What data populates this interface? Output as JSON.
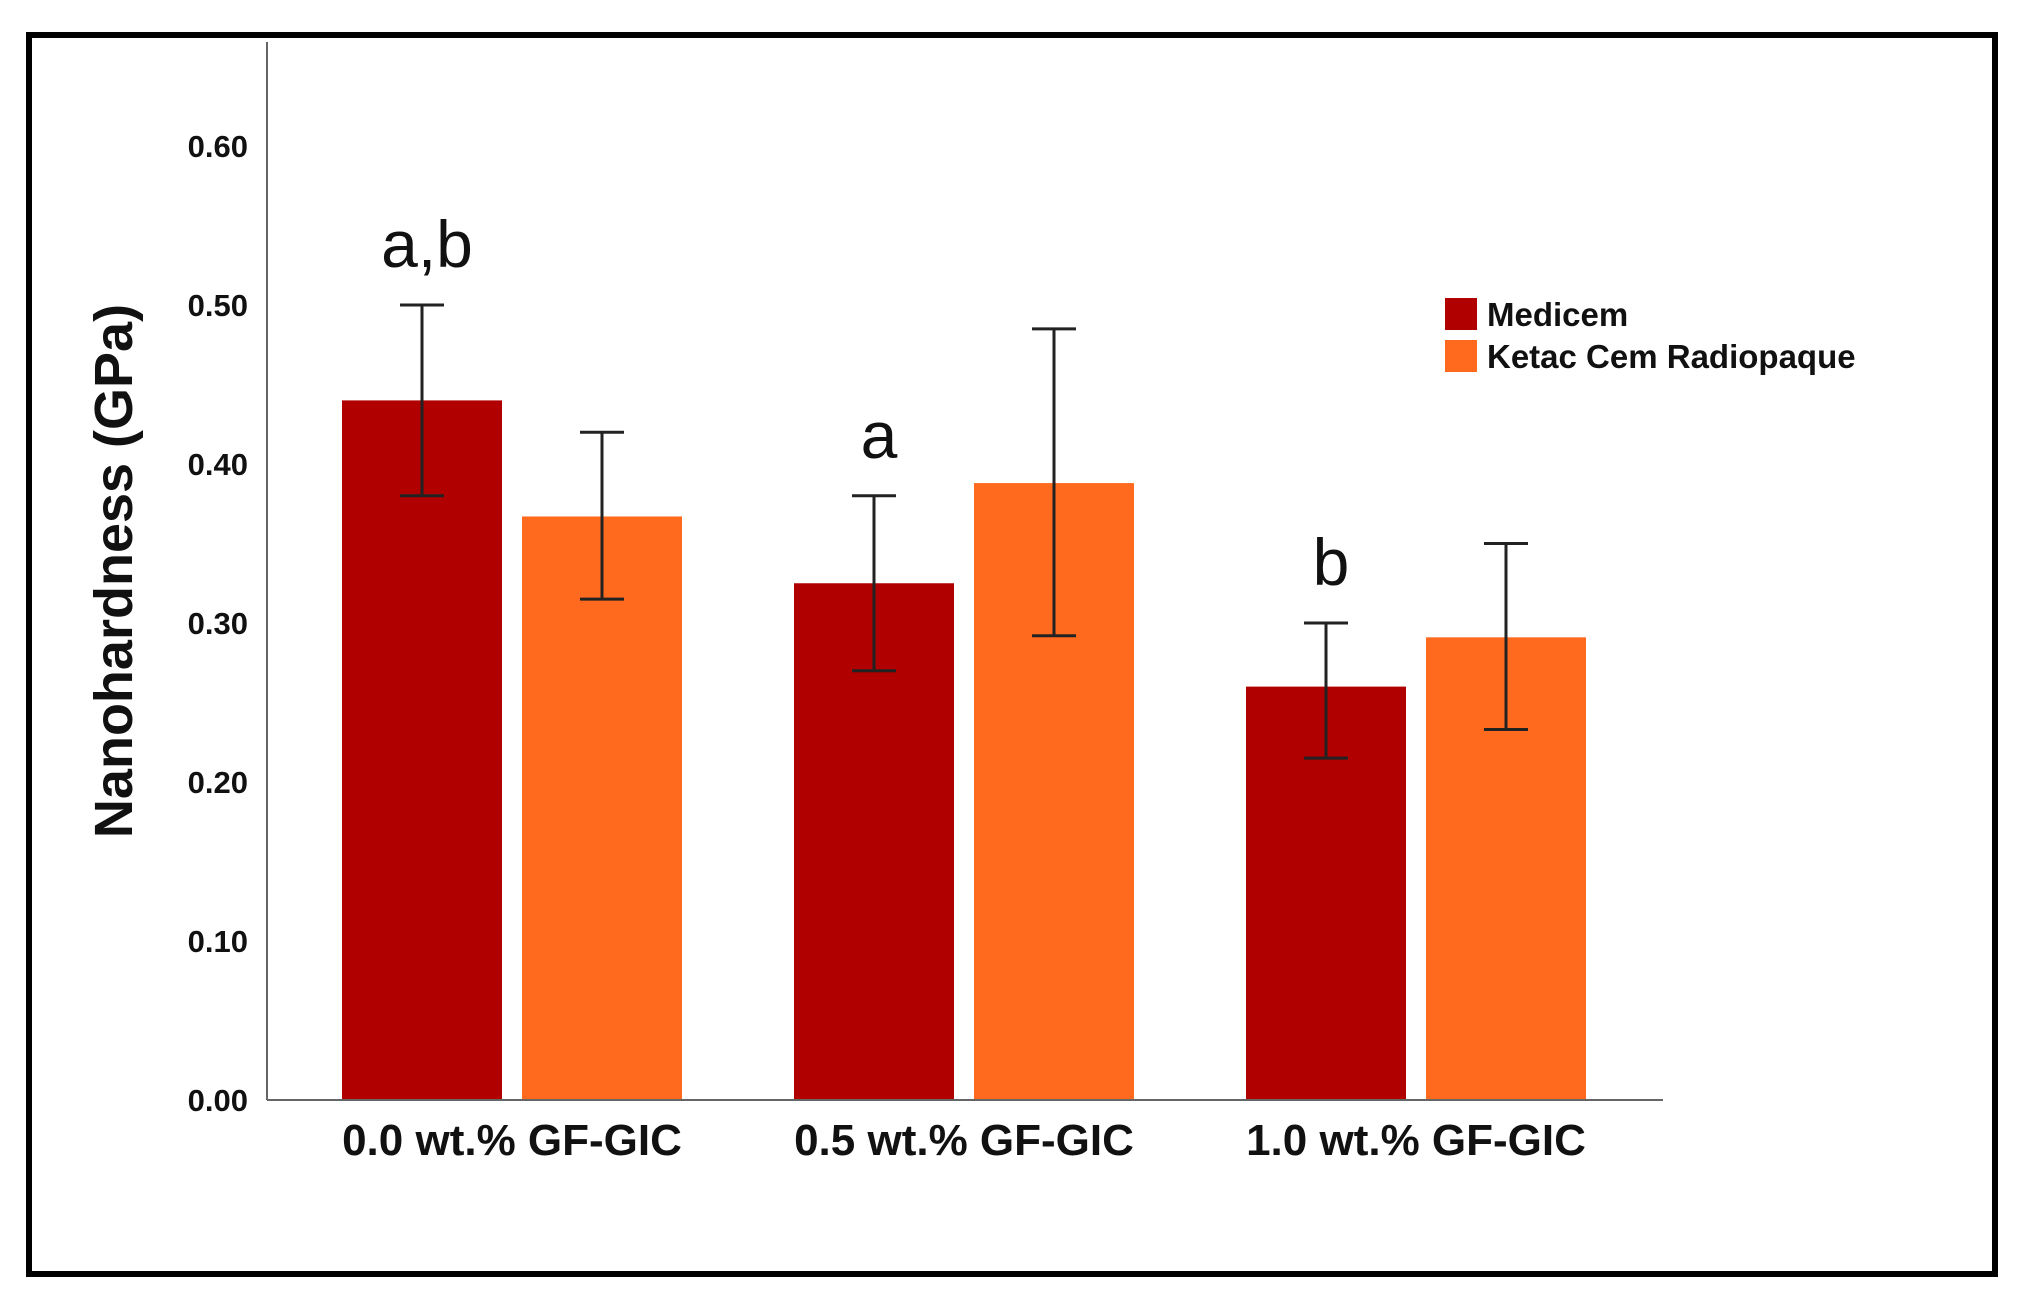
{
  "chart_data": {
    "type": "bar",
    "categories": [
      "0.0 wt.% GF-GIC",
      "0.5 wt.% GF-GIC",
      "1.0 wt.% GF-GIC"
    ],
    "series": [
      {
        "name": "Medicem",
        "color": "#B00000",
        "values": [
          0.44,
          0.325,
          0.26
        ],
        "error_low": [
          0.38,
          0.27,
          0.215
        ],
        "error_high": [
          0.5,
          0.38,
          0.3
        ]
      },
      {
        "name": "Ketac Cem Radiopaque",
        "color": "#FF6A1F",
        "values": [
          0.367,
          0.388,
          0.291
        ],
        "error_low": [
          0.315,
          0.292,
          0.233
        ],
        "error_high": [
          0.42,
          0.485,
          0.35
        ]
      }
    ],
    "ylabel": "Nanohardness (GPa)",
    "ylim": [
      0,
      0.66
    ],
    "yticks": [
      "0.00",
      "0.10",
      "0.20",
      "0.30",
      "0.40",
      "0.50",
      "0.60"
    ],
    "ytick_values": [
      0,
      0.1,
      0.2,
      0.3,
      0.4,
      0.5,
      0.6
    ],
    "annotations": [
      "a,b",
      "a",
      "b"
    ],
    "legend_position": "top-right",
    "grid": false
  }
}
